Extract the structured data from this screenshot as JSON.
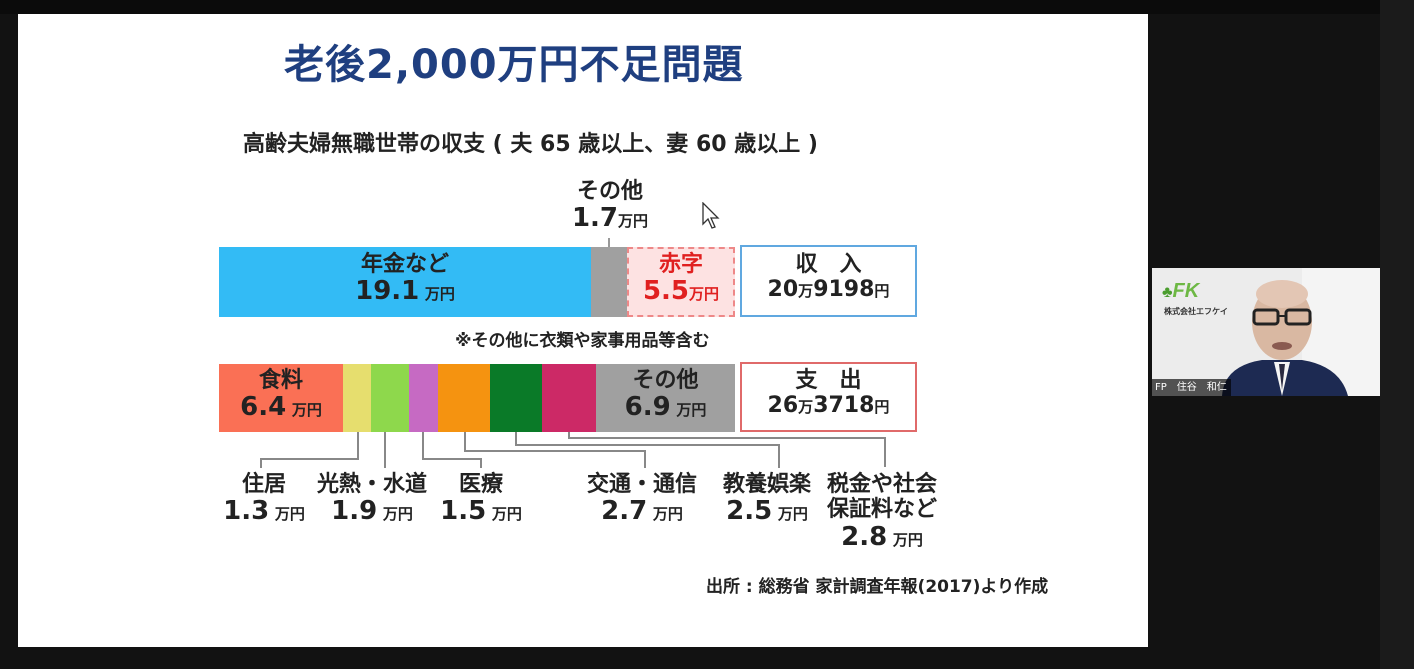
{
  "slide": {
    "title": "老後2,000万円不足問題",
    "subtitle": "高齢夫婦無職世帯の収支 ( 夫 65 歳以上、妻 60 歳以上 )",
    "income_row": {
      "pension_name": "年金など",
      "pension_value": "19.1",
      "other_name": "その他",
      "other_value": "1.7",
      "deficit_name": "赤字",
      "deficit_value": "5.5",
      "total_name": "収　入",
      "total_value_a": "20",
      "total_value_b": "9198",
      "unit": "万円"
    },
    "note": "※その他に衣類や家事用品等含む",
    "expense_row": {
      "food_name": "食料",
      "food_value": "6.4",
      "other_name": "その他",
      "other_value": "6.9",
      "total_name": "支　出",
      "total_value_a": "26",
      "total_value_b": "3718",
      "unit": "万円",
      "housing_name": "住居",
      "housing_value": "1.3",
      "utilities_name": "光熱・水道",
      "utilities_value": "1.9",
      "medical_name": "医療",
      "medical_value": "1.5",
      "transport_name": "交通・通信",
      "transport_value": "2.7",
      "education_name": "教養娯楽",
      "education_value": "2.5",
      "tax_name_1": "税金や社会",
      "tax_name_2": "保証料など",
      "tax_value": "2.8"
    },
    "source": "出所 : 総務省 家計調査年報(2017)より作成"
  },
  "video_tile": {
    "logo_text": "FK",
    "company": "株式会社エフケイ",
    "participant_name": "FP　住谷　和仁"
  },
  "colors": {
    "title": "#1f3f80",
    "pension": "#33bbf5",
    "other_income": "#a0a0a0",
    "deficit_fill": "#fde2e2",
    "deficit_text": "#e02020",
    "income_border": "#60a8e0",
    "food": "#fa7055",
    "housing": "#e6de6e",
    "utilities": "#8ed84c",
    "medical": "#c66ac3",
    "transport_a": "#f59310",
    "transport_b": "#0a7a28",
    "education": "#cc2966",
    "other_expense": "#a0a0a0",
    "expense_border": "#e06a6a"
  }
}
